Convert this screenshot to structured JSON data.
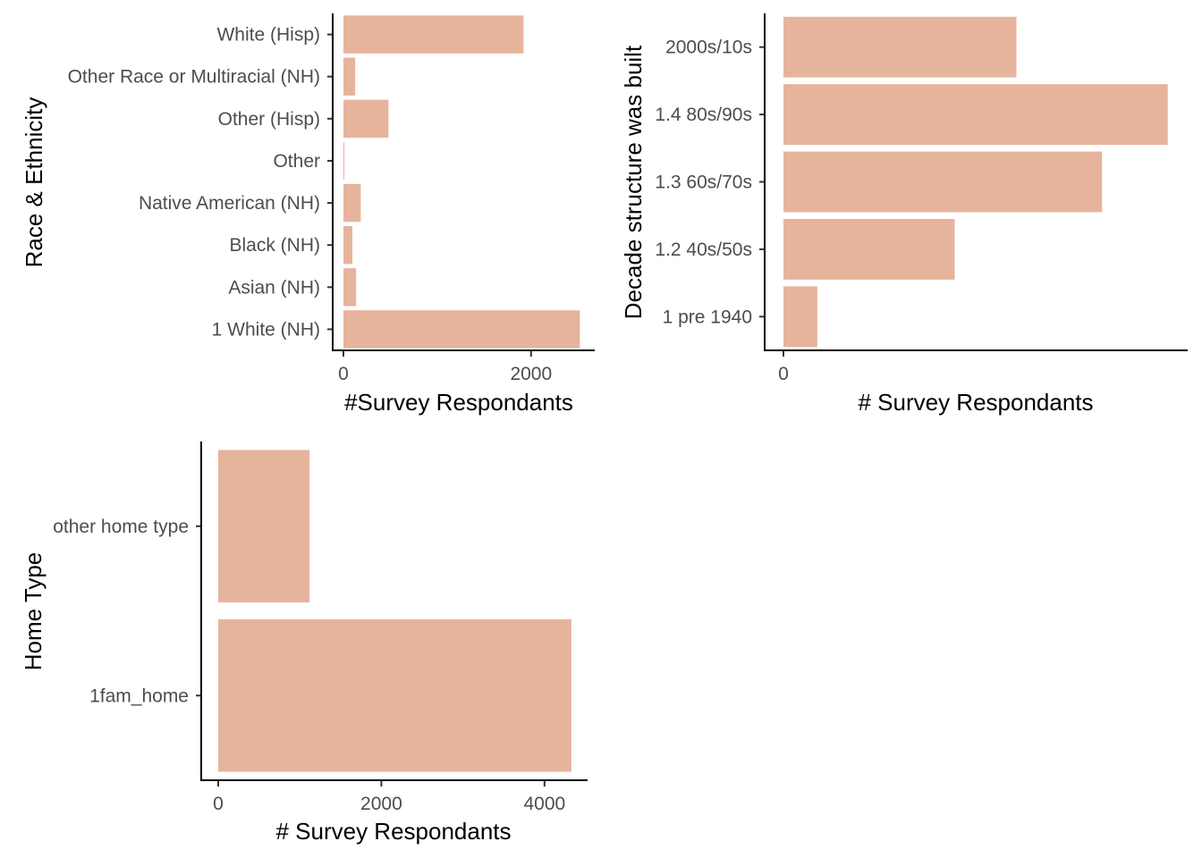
{
  "bar_color": "#E6B49C",
  "chart_data": [
    {
      "type": "bar",
      "orientation": "horizontal",
      "categories": [
        "1 White (NH)",
        "Asian (NH)",
        "Black (NH)",
        "Native American (NH)",
        "Other",
        "Other (Hisp)",
        "Other Race or Multiracial (NH)",
        "White (Hisp)"
      ],
      "values": [
        2520,
        135,
        95,
        185,
        8,
        480,
        125,
        1920
      ],
      "xlabel": "#Survey Respondants",
      "ylabel": "Race & Ethnicity",
      "xlim": [
        0,
        2650
      ],
      "xticks": [
        0,
        2000
      ],
      "grid": false
    },
    {
      "type": "bar",
      "orientation": "horizontal",
      "categories": [
        "1 pre 1940",
        "1.2 40s/50s",
        "1.3 60s/70s",
        "1.4 80s/90s",
        "2000s/10s"
      ],
      "values": [
        170,
        860,
        1600,
        1930,
        1170
      ],
      "xlabel": "# Survey Respondants",
      "ylabel": "Decade structure was built",
      "xlim": [
        0,
        2030
      ],
      "xticks": [
        0
      ],
      "grid": false
    },
    {
      "type": "bar",
      "orientation": "horizontal",
      "categories": [
        "1fam_home",
        "other home type"
      ],
      "values": [
        4330,
        1120
      ],
      "xlabel": "# Survey Respondants",
      "ylabel": "Home Type",
      "xlim": [
        0,
        4550
      ],
      "xticks": [
        0,
        2000,
        4000
      ],
      "grid": false
    }
  ]
}
